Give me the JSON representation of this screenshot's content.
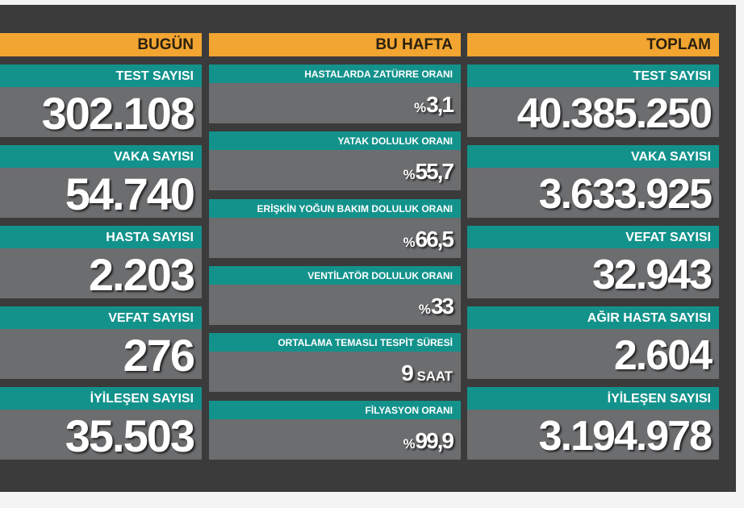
{
  "columns": [
    {
      "header": "BUGÜN",
      "items": [
        {
          "label": "TEST SAYISI",
          "value": "302.108"
        },
        {
          "label": "VAKA SAYISI",
          "value": "54.740"
        },
        {
          "label": "HASTA SAYISI",
          "value": "2.203"
        },
        {
          "label": "VEFAT SAYISI",
          "value": "276"
        },
        {
          "label": "İYİLEŞEN SAYISI",
          "value": "35.503"
        }
      ]
    },
    {
      "header": "BU HAFTA",
      "items": [
        {
          "label": "HASTALARDA ZATÜRRE ORANI",
          "prefix": "%",
          "value": "3,1"
        },
        {
          "label": "YATAK DOLULUK ORANI",
          "prefix": "%",
          "value": "55,7"
        },
        {
          "label": "ERİŞKİN YOĞUN BAKIM DOLULUK ORANI",
          "prefix": "%",
          "value": "66,5"
        },
        {
          "label": "VENTİLATÖR DOLULUK ORANI",
          "prefix": "%",
          "value": "33"
        },
        {
          "label": "ORTALAMA TEMASLI TESPİT SÜRESİ",
          "value": "9",
          "suffix": "SAAT"
        },
        {
          "label": "FİLYASYON ORANI",
          "prefix": "%",
          "value": "99,9"
        }
      ]
    },
    {
      "header": "TOPLAM",
      "items": [
        {
          "label": "TEST SAYISI",
          "value": "40.385.250"
        },
        {
          "label": "VAKA SAYISI",
          "value": "3.633.925"
        },
        {
          "label": "VEFAT SAYISI",
          "value": "32.943"
        },
        {
          "label": "AĞIR HASTA SAYISI",
          "value": "2.604"
        },
        {
          "label": "İYİLEŞEN SAYISI",
          "value": "3.194.978"
        }
      ]
    }
  ]
}
